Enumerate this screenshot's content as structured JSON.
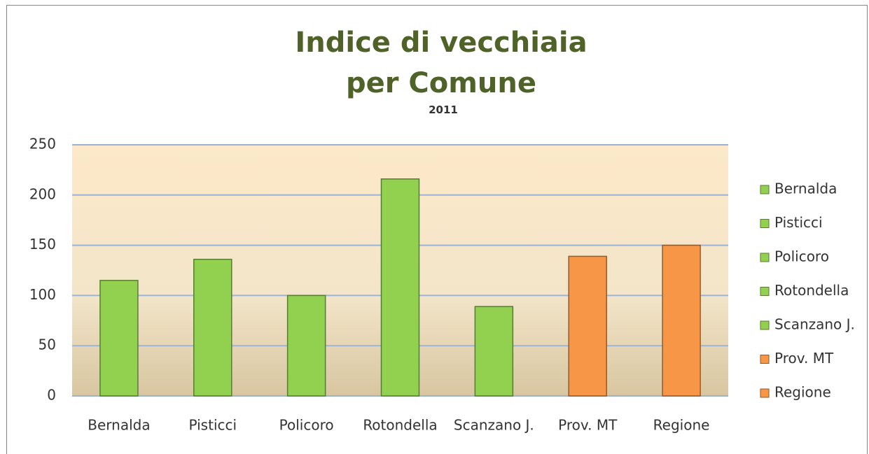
{
  "chart_data": {
    "type": "bar",
    "title": "Indice di vecchiaia per Comune",
    "subtitle": "2011",
    "categories": [
      "Bernalda",
      "Pisticci",
      "Policoro",
      "Rotondella",
      "Scanzano J.",
      "Prov.  MT",
      "Regione"
    ],
    "values": [
      115,
      136,
      100,
      216,
      89,
      139,
      150
    ],
    "colors": [
      "#92d050",
      "#92d050",
      "#92d050",
      "#92d050",
      "#92d050",
      "#f79646",
      "#f79646"
    ],
    "ylim": [
      0,
      250
    ],
    "yticks": [
      0,
      50,
      100,
      150,
      200,
      250
    ],
    "grid": true,
    "legend": "right"
  }
}
